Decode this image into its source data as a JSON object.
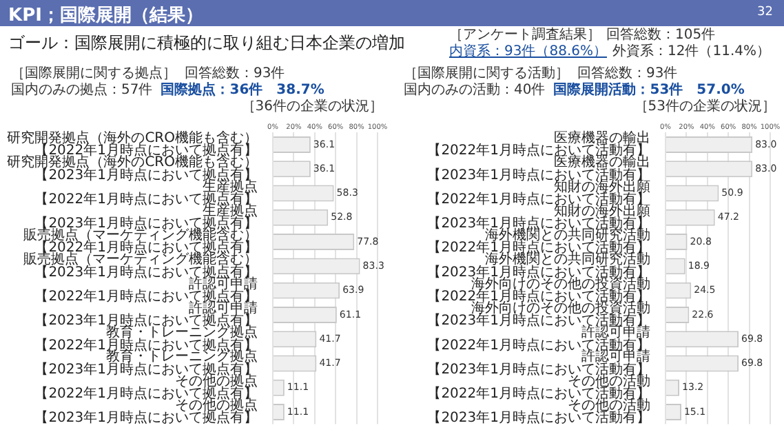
{
  "chart_data": [
    {
      "type": "other",
      "title": "KPI；国際展開（結果）",
      "subtitle": "ゴール：国際展開に積極的に取り組む日本企業の増加",
      "annotations": [
        "32",
        "［アンケート調査結果］",
        "回答総数：105件",
        "内資系：93件（88.6%）",
        "外資系：12件（11.4%）"
      ]
    },
    {
      "type": "bar",
      "orientation": "horizontal",
      "title": "［36件の企業の状況］",
      "annotations": [
        "［国際展開に関する拠点］",
        "回答総数：93件",
        "国内のみの拠点：57件",
        "国際拠点：36件　38.7%"
      ],
      "categories": [
        "研究開発拠点（海外のCRO機能も含む）【2022年1月時点において拠点有】",
        "研究開発拠点（海外のCRO機能も含む）【2023年1月時点において拠点有】",
        "生産拠点【2022年1月時点において拠点有】",
        "生産拠点【2023年1月時点において拠点有】",
        "販売拠点（マーケティング機能含む）【2022年1月時点において拠点有】",
        "販売拠点（マーケティング機能含む）【2023年1月時点において拠点有】",
        "許認可申請【2022年1月時点において拠点有】",
        "許認可申請【2023年1月時点において拠点有】",
        "教育・トレーニング拠点【2022年1月時点において拠点有】",
        "教育・トレーニング拠点【2023年1月時点において拠点有】",
        "その他の拠点【2022年1月時点において拠点有】",
        "その他の拠点【2023年1月時点において拠点有】"
      ],
      "values": [
        36.1,
        36.1,
        58.3,
        52.8,
        77.8,
        83.3,
        63.9,
        61.1,
        41.7,
        41.7,
        11.1,
        11.1
      ],
      "value_labels": [
        "36.1",
        "36.1",
        "58.3",
        "52.8",
        "77.8",
        "83.3",
        "63.9",
        "61.1",
        "41.7",
        "41.7",
        "11.1",
        "11.1"
      ],
      "color": "#efefef",
      "xlim": [
        0,
        100
      ],
      "xticks": [
        {
          "value": 0,
          "label": "0%"
        },
        {
          "value": 20,
          "label": "20%"
        },
        {
          "value": 40,
          "label": "40%"
        },
        {
          "value": 60,
          "label": "60%"
        },
        {
          "value": 80,
          "label": "80%"
        },
        {
          "value": 100,
          "label": "100%"
        }
      ],
      "grid": "x"
    },
    {
      "type": "bar",
      "orientation": "horizontal",
      "title": "［53件の企業の状況］",
      "annotations": [
        "［国際展開に関する活動］",
        "回答総数：93件",
        "国内のみの活動：40件",
        "国際展開活動：53件　57.0%"
      ],
      "categories": [
        "医療機器の輸出【2022年1月時点において活動有】",
        "医療機器の輸出【2023年1月時点において活動有】",
        "知財の海外出願【2022年1月時点において活動有】",
        "知財の海外出願【2023年1月時点において活動有】",
        "海外機関との共同研究活動【2022年1月時点において活動有】",
        "海外機関との共同研究活動【2023年1月時点において活動有】",
        "海外向けのその他の投資活動【2022年1月時点において活動有】",
        "海外向けのその他の投資活動【2023年1月時点において活動有】",
        "許認可申請【2022年1月時点において活動有】",
        "許認可申請【2023年1月時点において活動有】",
        "その他の活動【2022年1月時点において活動有】",
        "その他の活動【2023年1月時点において活動有】"
      ],
      "values": [
        83.0,
        83.0,
        50.9,
        47.2,
        20.8,
        18.9,
        24.5,
        22.6,
        69.8,
        69.8,
        13.2,
        15.1
      ],
      "value_labels": [
        "83.0",
        "83.0",
        "50.9",
        "47.2",
        "20.8",
        "18.9",
        "24.5",
        "22.6",
        "69.8",
        "69.8",
        "13.2",
        "15.1"
      ],
      "color": "#efefef",
      "xlim": [
        0,
        100
      ],
      "xticks": [
        {
          "value": 0,
          "label": "0%"
        },
        {
          "value": 20,
          "label": "20%"
        },
        {
          "value": 40,
          "label": "40%"
        },
        {
          "value": 60,
          "label": "60%"
        },
        {
          "value": 80,
          "label": "80%"
        },
        {
          "value": 100,
          "label": "100%"
        }
      ],
      "grid": "x"
    }
  ]
}
